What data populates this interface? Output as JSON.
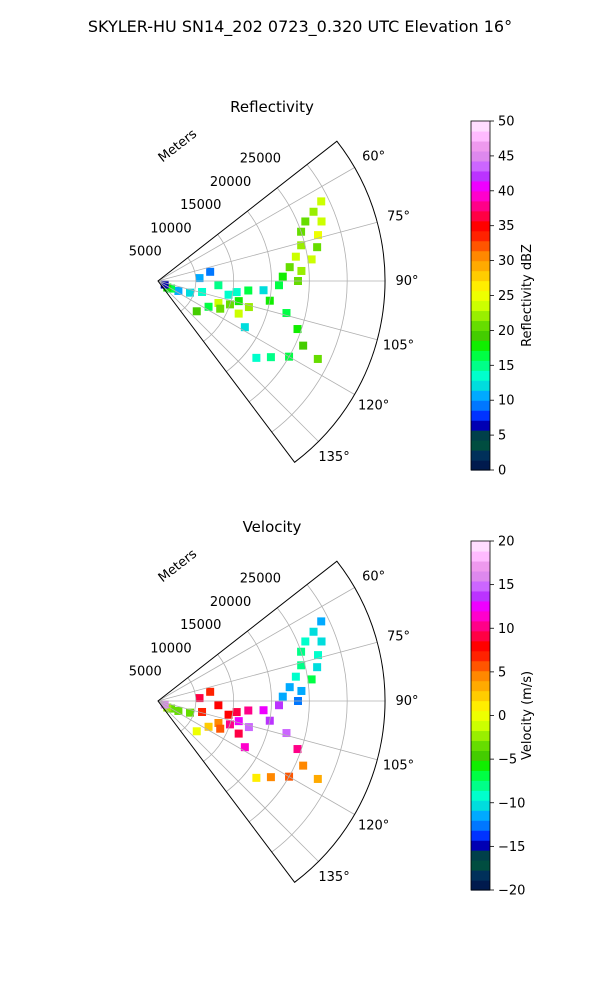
{
  "figure": {
    "title": "SKYLER-HU  SN14_202  0723_0.320 UTC Elevation 16°"
  },
  "chart_data": [
    {
      "type": "heatmap",
      "projection": "polar-sector",
      "title": "Reflectivity",
      "radial_label": "Meters",
      "radial_ticks": [
        5000,
        10000,
        15000,
        20000,
        25000
      ],
      "radial_tick_labels": [
        "5000",
        "10000",
        "15000",
        "20000",
        "25000"
      ],
      "rlim": [
        0,
        30000
      ],
      "angular_ticks": [
        60,
        75,
        90,
        105,
        120,
        135
      ],
      "angular_tick_labels": [
        "60°",
        "75°",
        "90°",
        "105°",
        "120°",
        "135°"
      ],
      "theta_range_deg": [
        52,
        143
      ],
      "grid": true,
      "colorbar": {
        "label": "Reflectivity dBZ",
        "range": [
          0,
          50
        ],
        "ticks": [
          0,
          5,
          10,
          15,
          20,
          25,
          30,
          35,
          40,
          45,
          50
        ],
        "tick_labels": [
          "0",
          "5",
          "10",
          "15",
          "20",
          "25",
          "30",
          "35",
          "40",
          "45",
          "50"
        ],
        "colors": [
          "#001a4d",
          "#00305a",
          "#004d40",
          "#00404a",
          "#0000b3",
          "#0033ff",
          "#0077ff",
          "#00aaff",
          "#00dddd",
          "#00ffcc",
          "#00ff88",
          "#00ff44",
          "#11ee00",
          "#44cc00",
          "#66dd00",
          "#99ee00",
          "#ccff00",
          "#eeff00",
          "#ffee00",
          "#ffcc00",
          "#ffaa00",
          "#ff8800",
          "#ff5500",
          "#ff2200",
          "#ff0000",
          "#ff0044",
          "#ff0088",
          "#ff00cc",
          "#ee00ff",
          "#bb33ff",
          "#cc66ff",
          "#dd88ee",
          "#ee99ee",
          "#ffbbff",
          "#ffddff"
        ]
      },
      "cells": [
        {
          "range_m": 22500,
          "theta_deg": 66,
          "value": 22
        },
        {
          "range_m": 24000,
          "theta_deg": 64,
          "value": 24
        },
        {
          "range_m": 21000,
          "theta_deg": 68,
          "value": 21
        },
        {
          "range_m": 23000,
          "theta_deg": 70,
          "value": 23
        },
        {
          "range_m": 20000,
          "theta_deg": 71,
          "value": 20
        },
        {
          "range_m": 22000,
          "theta_deg": 74,
          "value": 25
        },
        {
          "range_m": 19500,
          "theta_deg": 76,
          "value": 22
        },
        {
          "range_m": 21500,
          "theta_deg": 78,
          "value": 20
        },
        {
          "range_m": 18500,
          "theta_deg": 80,
          "value": 24
        },
        {
          "range_m": 20500,
          "theta_deg": 82,
          "value": 23
        },
        {
          "range_m": 17500,
          "theta_deg": 84,
          "value": 21
        },
        {
          "range_m": 19000,
          "theta_deg": 86,
          "value": 22
        },
        {
          "range_m": 16500,
          "theta_deg": 88,
          "value": 18
        },
        {
          "range_m": 18500,
          "theta_deg": 90,
          "value": 20
        },
        {
          "range_m": 16000,
          "theta_deg": 92,
          "value": 17
        },
        {
          "range_m": 14000,
          "theta_deg": 95,
          "value": 12
        },
        {
          "range_m": 12000,
          "theta_deg": 96,
          "value": 16
        },
        {
          "range_m": 10500,
          "theta_deg": 98,
          "value": 14
        },
        {
          "range_m": 9500,
          "theta_deg": 101,
          "value": 13
        },
        {
          "range_m": 11000,
          "theta_deg": 104,
          "value": 18
        },
        {
          "range_m": 12500,
          "theta_deg": 106,
          "value": 22
        },
        {
          "range_m": 10000,
          "theta_deg": 108,
          "value": 21
        },
        {
          "range_m": 8500,
          "theta_deg": 110,
          "value": 23
        },
        {
          "range_m": 11500,
          "theta_deg": 112,
          "value": 24
        },
        {
          "range_m": 9000,
          "theta_deg": 114,
          "value": 20
        },
        {
          "range_m": 7500,
          "theta_deg": 117,
          "value": 16
        },
        {
          "range_m": 13000,
          "theta_deg": 118,
          "value": 12
        },
        {
          "range_m": 15000,
          "theta_deg": 100,
          "value": 18
        },
        {
          "range_m": 17500,
          "theta_deg": 104,
          "value": 17
        },
        {
          "range_m": 19500,
          "theta_deg": 109,
          "value": 18
        },
        {
          "range_m": 21000,
          "theta_deg": 114,
          "value": 19
        },
        {
          "range_m": 23500,
          "theta_deg": 116,
          "value": 20
        },
        {
          "range_m": 20000,
          "theta_deg": 120,
          "value": 17
        },
        {
          "range_m": 18000,
          "theta_deg": 124,
          "value": 15
        },
        {
          "range_m": 16500,
          "theta_deg": 128,
          "value": 13
        },
        {
          "range_m": 6000,
          "theta_deg": 104,
          "value": 14
        },
        {
          "range_m": 4500,
          "theta_deg": 110,
          "value": 12
        },
        {
          "range_m": 3000,
          "theta_deg": 116,
          "value": 10
        },
        {
          "range_m": 2000,
          "theta_deg": 120,
          "value": 16
        },
        {
          "range_m": 1500,
          "theta_deg": 125,
          "value": 18
        },
        {
          "range_m": 1000,
          "theta_deg": 118,
          "value": 6
        },
        {
          "range_m": 5500,
          "theta_deg": 86,
          "value": 11
        },
        {
          "range_m": 7000,
          "theta_deg": 80,
          "value": 9
        },
        {
          "range_m": 8000,
          "theta_deg": 94,
          "value": 15
        },
        {
          "range_m": 6500,
          "theta_deg": 128,
          "value": 19
        }
      ]
    },
    {
      "type": "heatmap",
      "projection": "polar-sector",
      "title": "Velocity",
      "radial_label": "Meters",
      "radial_ticks": [
        5000,
        10000,
        15000,
        20000,
        25000
      ],
      "radial_tick_labels": [
        "5000",
        "10000",
        "15000",
        "20000",
        "25000"
      ],
      "rlim": [
        0,
        30000
      ],
      "angular_ticks": [
        60,
        75,
        90,
        105,
        120,
        135
      ],
      "angular_tick_labels": [
        "60°",
        "75°",
        "90°",
        "105°",
        "120°",
        "135°"
      ],
      "theta_range_deg": [
        52,
        143
      ],
      "grid": true,
      "colorbar": {
        "label": "Velocity (m/s)",
        "range": [
          -20,
          20
        ],
        "ticks": [
          -20,
          -15,
          -10,
          -5,
          0,
          5,
          10,
          15,
          20
        ],
        "tick_labels": [
          "−20",
          "−15",
          "−10",
          "−5",
          "0",
          "5",
          "10",
          "15",
          "20"
        ],
        "colors": [
          "#001a4d",
          "#00305a",
          "#004d40",
          "#00404a",
          "#0000b3",
          "#0033ff",
          "#0077ff",
          "#00aaff",
          "#00dddd",
          "#00ffcc",
          "#00ff88",
          "#00ff44",
          "#11ee00",
          "#44cc00",
          "#66dd00",
          "#99ee00",
          "#ccff00",
          "#eeff00",
          "#ffee00",
          "#ffcc00",
          "#ffaa00",
          "#ff8800",
          "#ff5500",
          "#ff2200",
          "#ff0000",
          "#ff0044",
          "#ff0088",
          "#ff00cc",
          "#ee00ff",
          "#bb33ff",
          "#cc66ff",
          "#dd88ee",
          "#ee99ee",
          "#ffbbff",
          "#ffddff"
        ]
      },
      "cells": [
        {
          "range_m": 22500,
          "theta_deg": 66,
          "value": -10
        },
        {
          "range_m": 24000,
          "theta_deg": 64,
          "value": -11
        },
        {
          "range_m": 21000,
          "theta_deg": 68,
          "value": -9
        },
        {
          "range_m": 23000,
          "theta_deg": 70,
          "value": -10
        },
        {
          "range_m": 20000,
          "theta_deg": 71,
          "value": -8
        },
        {
          "range_m": 22000,
          "theta_deg": 74,
          "value": -9
        },
        {
          "range_m": 19500,
          "theta_deg": 76,
          "value": -8
        },
        {
          "range_m": 21500,
          "theta_deg": 78,
          "value": -10
        },
        {
          "range_m": 18500,
          "theta_deg": 80,
          "value": -9
        },
        {
          "range_m": 20500,
          "theta_deg": 82,
          "value": -7
        },
        {
          "range_m": 17500,
          "theta_deg": 84,
          "value": -11
        },
        {
          "range_m": 19000,
          "theta_deg": 86,
          "value": -12
        },
        {
          "range_m": 16500,
          "theta_deg": 88,
          "value": -12
        },
        {
          "range_m": 18500,
          "theta_deg": 90,
          "value": -13
        },
        {
          "range_m": 16000,
          "theta_deg": 92,
          "value": 14
        },
        {
          "range_m": 14000,
          "theta_deg": 95,
          "value": 13
        },
        {
          "range_m": 12000,
          "theta_deg": 96,
          "value": 10
        },
        {
          "range_m": 10500,
          "theta_deg": 98,
          "value": 9
        },
        {
          "range_m": 9500,
          "theta_deg": 101,
          "value": 8
        },
        {
          "range_m": 11000,
          "theta_deg": 104,
          "value": 12
        },
        {
          "range_m": 12500,
          "theta_deg": 106,
          "value": 15
        },
        {
          "range_m": 10000,
          "theta_deg": 108,
          "value": 10
        },
        {
          "range_m": 8500,
          "theta_deg": 110,
          "value": 4
        },
        {
          "range_m": 11500,
          "theta_deg": 112,
          "value": 9
        },
        {
          "range_m": 9000,
          "theta_deg": 114,
          "value": 6
        },
        {
          "range_m": 7500,
          "theta_deg": 117,
          "value": 2
        },
        {
          "range_m": 13000,
          "theta_deg": 118,
          "value": 11
        },
        {
          "range_m": 15000,
          "theta_deg": 100,
          "value": 14
        },
        {
          "range_m": 17500,
          "theta_deg": 104,
          "value": 15
        },
        {
          "range_m": 19500,
          "theta_deg": 109,
          "value": 10
        },
        {
          "range_m": 21000,
          "theta_deg": 114,
          "value": 5
        },
        {
          "range_m": 23500,
          "theta_deg": 116,
          "value": 3
        },
        {
          "range_m": 20000,
          "theta_deg": 120,
          "value": 6
        },
        {
          "range_m": 18000,
          "theta_deg": 124,
          "value": 4
        },
        {
          "range_m": 16500,
          "theta_deg": 128,
          "value": 1
        },
        {
          "range_m": 6000,
          "theta_deg": 104,
          "value": 7
        },
        {
          "range_m": 4500,
          "theta_deg": 110,
          "value": -3
        },
        {
          "range_m": 3000,
          "theta_deg": 116,
          "value": -4
        },
        {
          "range_m": 2000,
          "theta_deg": 120,
          "value": -3
        },
        {
          "range_m": 1500,
          "theta_deg": 125,
          "value": -2
        },
        {
          "range_m": 1000,
          "theta_deg": 118,
          "value": 16
        },
        {
          "range_m": 5500,
          "theta_deg": 86,
          "value": 9
        },
        {
          "range_m": 7000,
          "theta_deg": 80,
          "value": 7
        },
        {
          "range_m": 8000,
          "theta_deg": 94,
          "value": 8
        },
        {
          "range_m": 6500,
          "theta_deg": 128,
          "value": 0
        }
      ]
    }
  ]
}
